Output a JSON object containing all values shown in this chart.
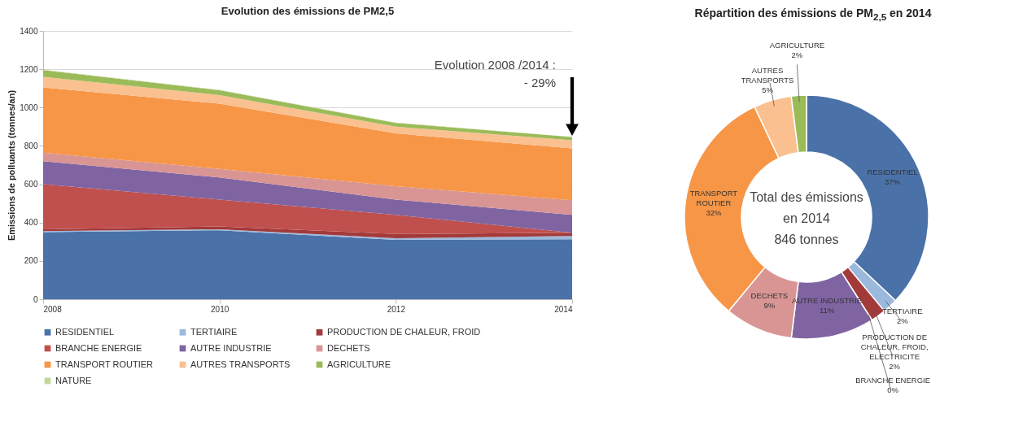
{
  "chart_data": [
    {
      "type": "area",
      "stacked": true,
      "title": "Evolution des émissions de PM2,5",
      "ylabel": "Emissions de polluants (tonnes/an)",
      "x": [
        2008,
        2010,
        2012,
        2014
      ],
      "xlim": [
        2008,
        2014
      ],
      "xticks": [
        2008,
        2010,
        2012,
        2014
      ],
      "ylim": [
        0,
        1400
      ],
      "yticks": [
        0,
        200,
        400,
        600,
        800,
        1000,
        1200,
        1400
      ],
      "grid": "y",
      "legend": "bottom",
      "series": [
        {
          "name": "RESIDENTIEL",
          "color": "#4a72a8",
          "values": [
            350,
            360,
            310,
            313
          ]
        },
        {
          "name": "TERTIAIRE",
          "color": "#9bb9dc",
          "values": [
            5,
            5,
            8,
            17
          ]
        },
        {
          "name": "PRODUCTION DE CHALEUR, FROID",
          "color": "#a33a3a",
          "values": [
            10,
            15,
            22,
            17
          ]
        },
        {
          "name": "BRANCHE ENERGIE",
          "color": "#c0504d",
          "values": [
            235,
            140,
            100,
            0
          ]
        },
        {
          "name": "AUTRE INDUSTRIE",
          "color": "#8064a2",
          "values": [
            120,
            115,
            80,
            93
          ]
        },
        {
          "name": "DECHETS",
          "color": "#d99594",
          "values": [
            45,
            45,
            70,
            76
          ]
        },
        {
          "name": "TRANSPORT ROUTIER",
          "color": "#f79646",
          "values": [
            340,
            340,
            275,
            271
          ]
        },
        {
          "name": "AUTRES TRANSPORTS",
          "color": "#fac090",
          "values": [
            55,
            45,
            35,
            42
          ]
        },
        {
          "name": "AGRICULTURE",
          "color": "#9bbb59",
          "values": [
            35,
            25,
            20,
            17
          ]
        },
        {
          "name": "NATURE",
          "color": "#c3d69b",
          "values": [
            2,
            2,
            2,
            0
          ]
        }
      ],
      "annotations": [
        "Evolution 2008 /2014 :",
        "- 29%"
      ]
    },
    {
      "type": "donut",
      "title": "Répartition des émissions de PM$_{2,5}$ en 2014",
      "categories": [
        "RESIDENTIEL",
        "TERTIAIRE",
        "PRODUCTION DE CHALEUR, FROID, ELECTRICITE",
        "BRANCHE ENERGIE",
        "AUTRE INDUSTRIE",
        "DECHETS",
        "TRANSPORT ROUTIER",
        "AUTRES TRANSPORTS",
        "AGRICULTURE"
      ],
      "values": [
        37,
        2,
        2,
        0,
        11,
        9,
        32,
        5,
        2
      ],
      "colors": [
        "#4a72a8",
        "#9bb9dc",
        "#a33a3a",
        "#c0504d",
        "#8064a2",
        "#d99594",
        "#f79646",
        "#fac090",
        "#9bbb59"
      ],
      "value_labels": [
        "37%",
        "2%",
        "2%",
        "0%",
        "11%",
        "9%",
        "32%",
        "5%",
        "2%"
      ],
      "annotations": [
        "Total des émissions",
        "en 2014",
        "846 tonnes"
      ]
    }
  ]
}
